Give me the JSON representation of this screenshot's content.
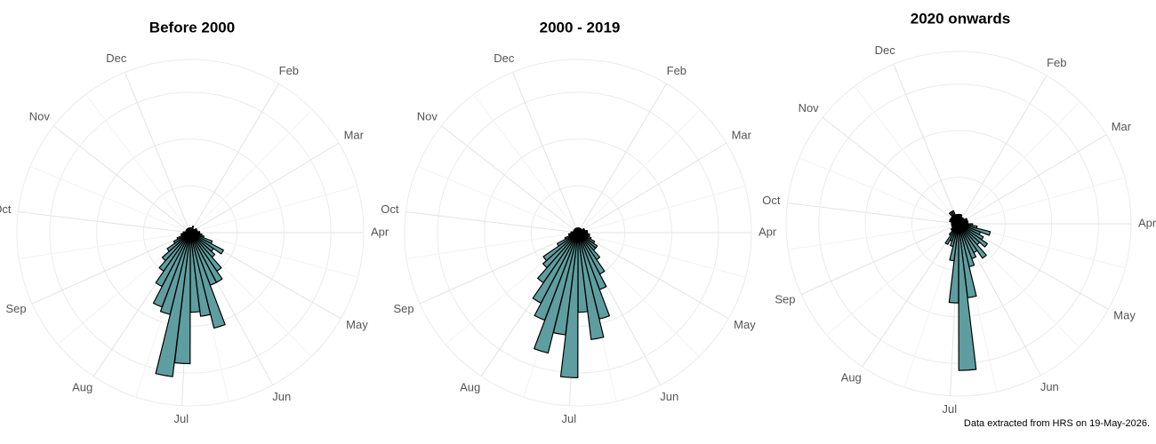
{
  "chart_data": [
    {
      "type": "polar_bar",
      "title": "Before 2000",
      "x": [
        1,
        2,
        3,
        4,
        5,
        6,
        7,
        8,
        9,
        10,
        11,
        12,
        13,
        14,
        15,
        16,
        17,
        18,
        19,
        20,
        21,
        22,
        23,
        24,
        25,
        26,
        27,
        28,
        29,
        30,
        31,
        32,
        33,
        34,
        35,
        36,
        37,
        38,
        39,
        40,
        41,
        42,
        43,
        44,
        45,
        46,
        47,
        48,
        49,
        50,
        51,
        52
      ],
      "values": [
        1,
        1,
        1,
        1.5,
        1,
        1,
        1,
        1,
        1.5,
        1.5,
        1.5,
        1.5,
        2,
        2,
        2.5,
        3,
        5,
        8,
        6,
        7,
        10,
        12,
        12,
        21,
        18,
        17,
        28,
        31,
        18,
        17,
        13,
        10,
        8,
        6,
        4,
        3,
        2,
        2,
        1.5,
        1.5,
        1,
        1,
        1,
        1,
        1,
        1,
        1,
        1,
        1,
        1,
        1,
        1
      ],
      "color": "#5f9ea0",
      "xlim": [
        0.5,
        52.5
      ],
      "xticks": [
        {
          "value": 4.93,
          "label": "Feb"
        },
        {
          "value": 9.0,
          "label": "Mar"
        },
        {
          "value": 13.5,
          "label": "Apr"
        },
        {
          "value": 17.8,
          "label": "May"
        },
        {
          "value": 22.4,
          "label": "Jun"
        },
        {
          "value": 26.9,
          "label": "Jul"
        },
        {
          "value": 31.4,
          "label": "Aug"
        },
        {
          "value": 36.0,
          "label": "Sep"
        },
        {
          "value": 40.5,
          "label": "Oct"
        },
        {
          "value": 45.0,
          "label": "Nov"
        },
        {
          "value": 49.3,
          "label": "Dec"
        }
      ],
      "ylim": [
        0,
        37
      ],
      "yticks": [
        10,
        20,
        30
      ],
      "grid": true
    },
    {
      "type": "polar_bar",
      "title": "2000 - 2019",
      "x": [
        1,
        2,
        3,
        4,
        5,
        6,
        7,
        8,
        9,
        10,
        11,
        12,
        13,
        14,
        15,
        16,
        17,
        18,
        19,
        20,
        21,
        22,
        23,
        24,
        25,
        26,
        27,
        28,
        29,
        30,
        31,
        32,
        33,
        34,
        35,
        36,
        37,
        38,
        39,
        40,
        41,
        42,
        43,
        44,
        45,
        46,
        47,
        48,
        49,
        50,
        51,
        52
      ],
      "values": [
        1,
        1,
        1,
        1,
        1,
        1,
        1,
        1,
        1.5,
        1.5,
        1.5,
        2,
        2,
        2,
        2.5,
        2.5,
        3,
        4,
        5,
        5,
        7,
        10,
        13,
        19,
        23,
        17,
        31,
        22,
        26.5,
        20,
        17,
        13,
        10,
        9,
        5,
        3,
        2,
        2,
        1.5,
        1.5,
        1,
        1,
        1,
        1,
        1,
        1,
        1,
        1,
        1,
        1,
        1,
        1
      ],
      "color": "#5f9ea0",
      "xlim": [
        0.5,
        52.5
      ],
      "xticks": [
        {
          "value": 4.93,
          "label": "Feb"
        },
        {
          "value": 9.0,
          "label": "Mar"
        },
        {
          "value": 13.5,
          "label": "Apr"
        },
        {
          "value": 17.8,
          "label": "May"
        },
        {
          "value": 22.4,
          "label": "Jun"
        },
        {
          "value": 26.9,
          "label": "Jul"
        },
        {
          "value": 31.4,
          "label": "Aug"
        },
        {
          "value": 36.0,
          "label": "Sep"
        },
        {
          "value": 40.5,
          "label": "Oct"
        },
        {
          "value": 45.0,
          "label": "Nov"
        },
        {
          "value": 49.3,
          "label": "Dec"
        }
      ],
      "ylim": [
        0,
        37
      ],
      "yticks": [
        10,
        20,
        30
      ],
      "grid": true
    },
    {
      "type": "polar_bar",
      "title": "2020 onwards",
      "x": [
        1,
        2,
        3,
        4,
        5,
        6,
        7,
        8,
        9,
        10,
        11,
        12,
        13,
        14,
        15,
        16,
        17,
        18,
        19,
        20,
        21,
        22,
        23,
        24,
        25,
        26,
        27,
        28,
        29,
        30,
        31,
        32,
        33,
        34,
        35,
        36,
        37,
        38,
        39,
        40,
        41,
        42,
        43,
        44,
        45,
        46,
        47,
        48,
        49,
        50,
        51,
        52
      ],
      "values": [
        2,
        2,
        2,
        1.5,
        1.5,
        1.5,
        1.5,
        1.5,
        2,
        2,
        2,
        2,
        2,
        3,
        4,
        7,
        5,
        6,
        7.5,
        6,
        9,
        7,
        8,
        9.5,
        16,
        31.5,
        17,
        8,
        5,
        4,
        5,
        3,
        2,
        2,
        1.5,
        1.5,
        1.5,
        1.5,
        1.5,
        1.5,
        1.5,
        2,
        2,
        2,
        2,
        2,
        3,
        3,
        3,
        2,
        2,
        2
      ],
      "color": "#5f9ea0",
      "xlim": [
        0.5,
        52.5
      ],
      "xticks": [
        {
          "value": 4.93,
          "label": "Feb"
        },
        {
          "value": 9.0,
          "label": "Mar"
        },
        {
          "value": 13.5,
          "label": "Apr"
        },
        {
          "value": 17.8,
          "label": "May"
        },
        {
          "value": 22.4,
          "label": "Jun"
        },
        {
          "value": 26.9,
          "label": "Jul"
        },
        {
          "value": 31.4,
          "label": "Aug"
        },
        {
          "value": 36.0,
          "label": "Sep"
        },
        {
          "value": 40.5,
          "label": "Oct"
        },
        {
          "value": 45.0,
          "label": "Nov"
        },
        {
          "value": 49.3,
          "label": "Dec"
        }
      ],
      "ylim": [
        0,
        37
      ],
      "yticks": [
        10,
        20,
        30
      ],
      "grid": true
    }
  ],
  "caption": "Data extracted from HRS on 19-May-2026."
}
